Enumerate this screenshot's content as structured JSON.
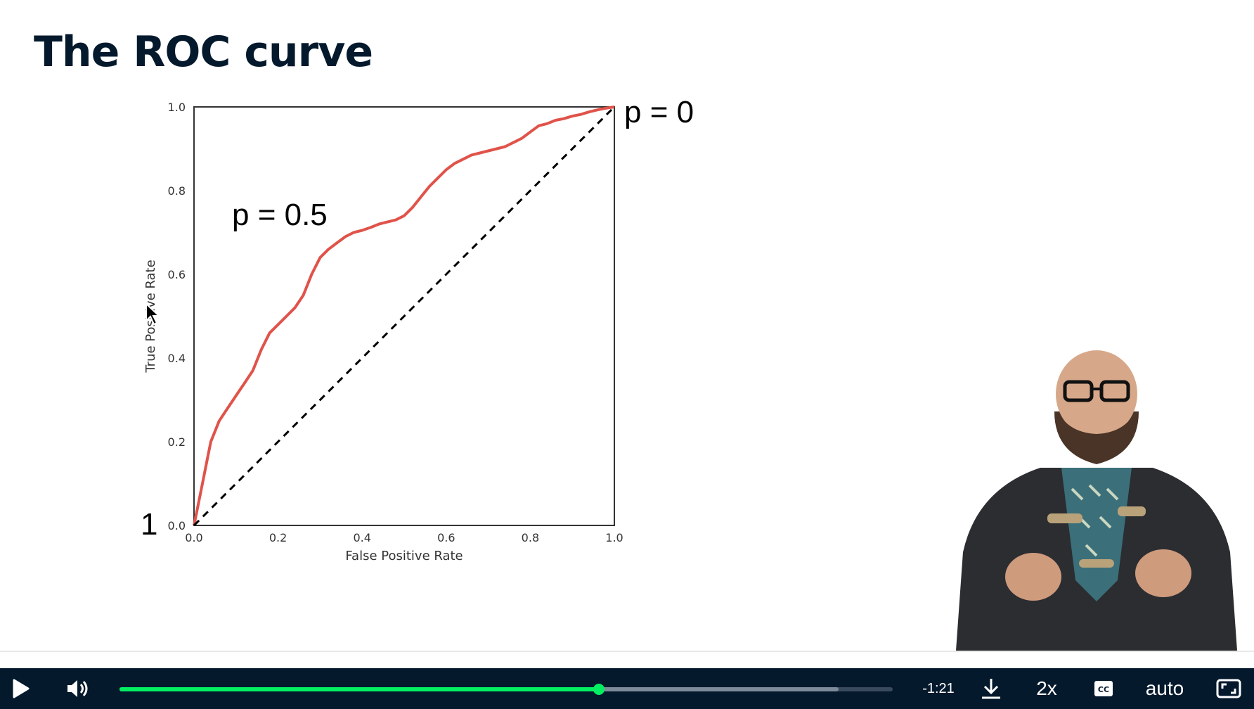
{
  "slide": {
    "title": "The ROC curve",
    "annotations": {
      "p0": "p = 0",
      "p05": "p = 0.5",
      "p1": "1"
    }
  },
  "chart_data": {
    "type": "line",
    "xlabel": "False Positive Rate",
    "ylabel": "True Positive Rate",
    "xlim": [
      0,
      1
    ],
    "ylim": [
      0,
      1
    ],
    "xticks": [
      "0.0",
      "0.2",
      "0.4",
      "0.6",
      "0.8",
      "1.0"
    ],
    "yticks": [
      "0.0",
      "0.2",
      "0.4",
      "0.6",
      "0.8",
      "1.0"
    ],
    "grid": false,
    "series": [
      {
        "style": "solid",
        "color": "#e0534a",
        "x": [
          0,
          0.01,
          0.02,
          0.03,
          0.04,
          0.06,
          0.08,
          0.1,
          0.12,
          0.14,
          0.16,
          0.18,
          0.2,
          0.22,
          0.24,
          0.26,
          0.28,
          0.3,
          0.32,
          0.34,
          0.36,
          0.38,
          0.4,
          0.42,
          0.44,
          0.46,
          0.48,
          0.5,
          0.52,
          0.54,
          0.56,
          0.58,
          0.6,
          0.62,
          0.64,
          0.66,
          0.68,
          0.7,
          0.72,
          0.74,
          0.76,
          0.78,
          0.8,
          0.82,
          0.84,
          0.86,
          0.88,
          0.9,
          0.92,
          0.94,
          0.96,
          0.98,
          1.0
        ],
        "y": [
          0,
          0.05,
          0.1,
          0.15,
          0.2,
          0.25,
          0.28,
          0.31,
          0.34,
          0.37,
          0.42,
          0.46,
          0.48,
          0.5,
          0.52,
          0.55,
          0.6,
          0.64,
          0.66,
          0.675,
          0.69,
          0.7,
          0.705,
          0.712,
          0.72,
          0.725,
          0.73,
          0.74,
          0.76,
          0.785,
          0.81,
          0.83,
          0.85,
          0.865,
          0.875,
          0.885,
          0.89,
          0.895,
          0.9,
          0.905,
          0.915,
          0.925,
          0.94,
          0.955,
          0.96,
          0.968,
          0.972,
          0.978,
          0.982,
          0.988,
          0.993,
          0.997,
          1.0
        ]
      },
      {
        "style": "dashed",
        "color": "#000000",
        "x": [
          0,
          1
        ],
        "y": [
          0,
          1
        ]
      }
    ]
  },
  "player": {
    "time_remaining": "-1:21",
    "speed": "2x",
    "quality": "auto",
    "progress_played": 0.62,
    "progress_buffered": 0.93,
    "icons": {
      "play": "play-icon",
      "volume": "volume-icon",
      "download": "download-icon",
      "captions": "captions-icon",
      "fullscreen": "fullscreen-icon"
    },
    "accent_color": "#03ef62",
    "bar_color": "#05192d"
  }
}
